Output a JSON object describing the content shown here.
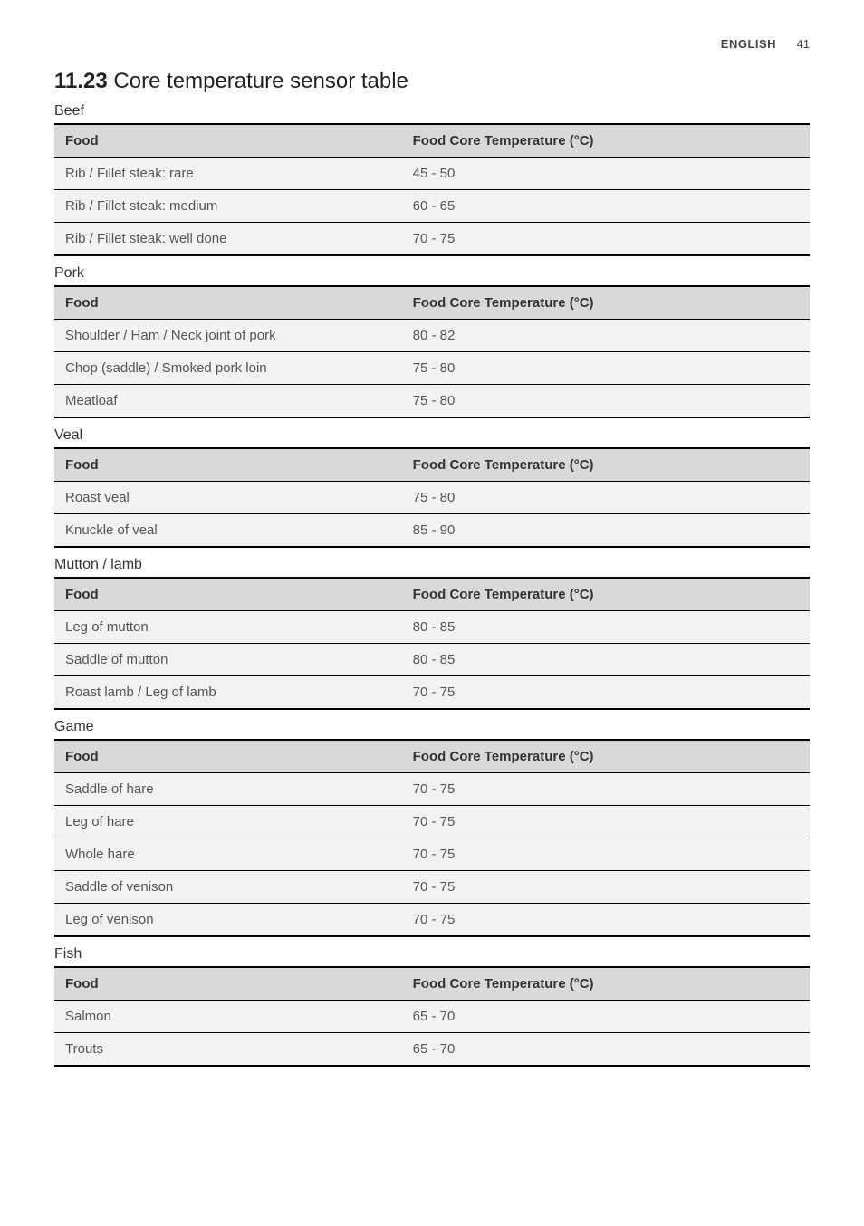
{
  "header": {
    "language": "ENGLISH",
    "page_number": "41"
  },
  "title": {
    "number": "11.23",
    "text": "Core temperature sensor table"
  },
  "column_headers": {
    "food": "Food",
    "temp": "Food Core Temperature (°C)"
  },
  "sections": [
    {
      "name": "Beef",
      "rows": [
        {
          "food": "Rib / Fillet steak: rare",
          "temp": "45 - 50"
        },
        {
          "food": "Rib / Fillet steak: medium",
          "temp": "60 - 65"
        },
        {
          "food": "Rib / Fillet steak: well done",
          "temp": "70 - 75"
        }
      ]
    },
    {
      "name": "Pork",
      "rows": [
        {
          "food": "Shoulder / Ham / Neck joint of pork",
          "temp": "80 - 82"
        },
        {
          "food": "Chop (saddle) / Smoked pork loin",
          "temp": "75 - 80"
        },
        {
          "food": "Meatloaf",
          "temp": "75 - 80"
        }
      ]
    },
    {
      "name": "Veal",
      "rows": [
        {
          "food": "Roast veal",
          "temp": "75 - 80"
        },
        {
          "food": "Knuckle of veal",
          "temp": "85 - 90"
        }
      ]
    },
    {
      "name": "Mutton / lamb",
      "rows": [
        {
          "food": "Leg of mutton",
          "temp": "80 - 85"
        },
        {
          "food": "Saddle of mutton",
          "temp": "80 - 85"
        },
        {
          "food": "Roast lamb / Leg of lamb",
          "temp": "70 - 75"
        }
      ]
    },
    {
      "name": "Game",
      "rows": [
        {
          "food": "Saddle of hare",
          "temp": "70 - 75"
        },
        {
          "food": "Leg of hare",
          "temp": "70 - 75"
        },
        {
          "food": "Whole hare",
          "temp": "70 - 75"
        },
        {
          "food": "Saddle of venison",
          "temp": "70 - 75"
        },
        {
          "food": "Leg of venison",
          "temp": "70 - 75"
        }
      ]
    },
    {
      "name": "Fish",
      "rows": [
        {
          "food": "Salmon",
          "temp": "65 - 70"
        },
        {
          "food": "Trouts",
          "temp": "65 - 70"
        }
      ]
    }
  ]
}
